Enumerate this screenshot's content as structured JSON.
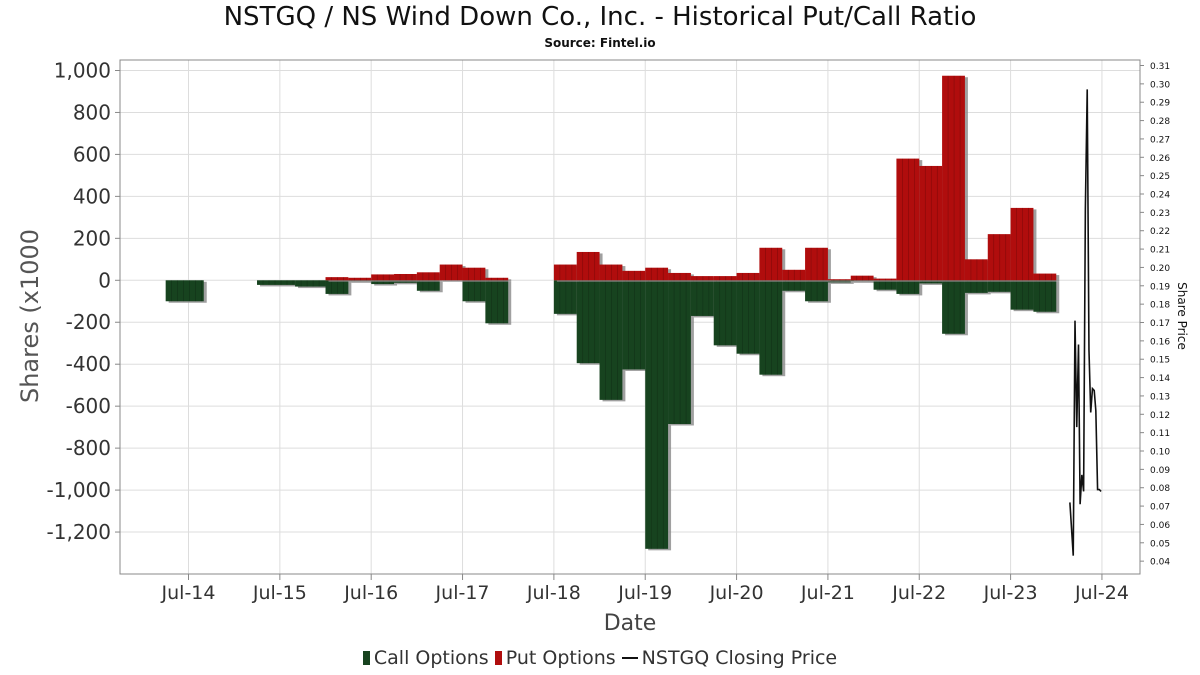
{
  "title": "NSTGQ / NS Wind Down Co., Inc. - Historical Put/Call Ratio",
  "subtitle": "Source: Fintel.io",
  "colors": {
    "call": "#17431f",
    "put": "#b00d0d",
    "price": "#111111",
    "shadow": "#888888",
    "grid": "#dddddd"
  },
  "legend": {
    "call": "Call Options",
    "put": "Put Options",
    "price": "NSTGQ Closing Price"
  },
  "chart_data": {
    "type": "bar",
    "title": "NSTGQ / NS Wind Down Co., Inc. - Historical Put/Call Ratio",
    "xlabel": "Date",
    "ylabel": "Shares (x1000",
    "y2label": "Share Price",
    "ylim": [
      -1400,
      1050
    ],
    "y2lim": [
      0.033,
      0.313
    ],
    "grid": true,
    "legend_position": "bottom",
    "x_tick_labels": [
      "Jul-14",
      "Jul-15",
      "Jul-16",
      "Jul-17",
      "Jul-18",
      "Jul-19",
      "Jul-20",
      "Jul-21",
      "Jul-22",
      "Jul-23",
      "Jul-24"
    ],
    "y_ticks": [
      1000,
      800,
      600,
      400,
      200,
      0,
      -200,
      -400,
      -600,
      -800,
      -1000,
      -1200
    ],
    "y_tick_labels": [
      "1,000",
      "800",
      "600",
      "400",
      "200",
      "0",
      "-200",
      "-400",
      "-600",
      "-800",
      "-1,000",
      "-1,200"
    ],
    "y2_ticks": [
      0.31,
      0.3,
      0.29,
      0.28,
      0.27,
      0.26,
      0.25,
      0.24,
      0.23,
      0.22,
      0.21,
      0.2,
      0.19,
      0.18,
      0.17,
      0.16,
      0.15,
      0.14,
      0.13,
      0.12,
      0.11,
      0.1,
      0.09,
      0.08,
      0.07,
      0.06,
      0.05,
      0.04
    ],
    "y2_tick_labels": [
      "0.31",
      "0.30",
      "0.29",
      "0.28",
      "0.27",
      "0.26",
      "0.25",
      "0.24",
      "0.23",
      "0.22",
      "0.21",
      "0.20",
      "0.19",
      "0.18",
      "0.17",
      "0.16",
      "0.15",
      "0.14",
      "0.13",
      "0.12",
      "0.11",
      "0.10",
      "0.09",
      "0.08",
      "0.07",
      "0.06",
      "0.05",
      "0.04"
    ],
    "x_tick_dates": [
      "2014-07",
      "2015-07",
      "2016-07",
      "2017-07",
      "2018-07",
      "2019-07",
      "2020-07",
      "2021-07",
      "2022-07",
      "2023-07",
      "2024-07"
    ],
    "x_range": [
      "2013-10",
      "2024-12"
    ],
    "series": [
      {
        "name": "Call Options",
        "type": "bar",
        "data": [
          {
            "start": "2014-04",
            "end": "2014-09",
            "value": -100
          },
          {
            "start": "2015-04",
            "end": "2015-09",
            "value": -22
          },
          {
            "start": "2015-09",
            "end": "2016-01",
            "value": -30
          },
          {
            "start": "2016-01",
            "end": "2016-04",
            "value": -65
          },
          {
            "start": "2016-04",
            "end": "2016-07",
            "value": -5
          },
          {
            "start": "2016-07",
            "end": "2016-10",
            "value": -18
          },
          {
            "start": "2016-10",
            "end": "2017-01",
            "value": -12
          },
          {
            "start": "2017-01",
            "end": "2017-04",
            "value": -50
          },
          {
            "start": "2017-04",
            "end": "2017-07",
            "value": -2
          },
          {
            "start": "2017-07",
            "end": "2017-10",
            "value": -100
          },
          {
            "start": "2017-10",
            "end": "2018-01",
            "value": -205
          },
          {
            "start": "2018-07",
            "end": "2018-10",
            "value": -160
          },
          {
            "start": "2018-10",
            "end": "2019-01",
            "value": -395
          },
          {
            "start": "2019-01",
            "end": "2019-04",
            "value": -570
          },
          {
            "start": "2019-04",
            "end": "2019-07",
            "value": -425
          },
          {
            "start": "2019-07",
            "end": "2019-10",
            "value": -1280
          },
          {
            "start": "2019-10",
            "end": "2020-01",
            "value": -685
          },
          {
            "start": "2020-01",
            "end": "2020-04",
            "value": -170
          },
          {
            "start": "2020-04",
            "end": "2020-07",
            "value": -310
          },
          {
            "start": "2020-07",
            "end": "2020-10",
            "value": -350
          },
          {
            "start": "2020-10",
            "end": "2021-01",
            "value": -450
          },
          {
            "start": "2021-01",
            "end": "2021-04",
            "value": -50
          },
          {
            "start": "2021-04",
            "end": "2021-07",
            "value": -100
          },
          {
            "start": "2021-07",
            "end": "2021-10",
            "value": -10
          },
          {
            "start": "2021-10",
            "end": "2022-01",
            "value": -5
          },
          {
            "start": "2022-01",
            "end": "2022-04",
            "value": -45
          },
          {
            "start": "2022-04",
            "end": "2022-07",
            "value": -65
          },
          {
            "start": "2022-07",
            "end": "2022-10",
            "value": -15
          },
          {
            "start": "2022-10",
            "end": "2023-01",
            "value": -255
          },
          {
            "start": "2023-01",
            "end": "2023-04",
            "value": -60
          },
          {
            "start": "2023-04",
            "end": "2023-07",
            "value": -55
          },
          {
            "start": "2023-07",
            "end": "2023-10",
            "value": -140
          },
          {
            "start": "2023-10",
            "end": "2024-01",
            "value": -150
          }
        ]
      },
      {
        "name": "Put Options",
        "type": "bar",
        "data": [
          {
            "start": "2016-01",
            "end": "2016-04",
            "value": 15
          },
          {
            "start": "2016-04",
            "end": "2016-07",
            "value": 12
          },
          {
            "start": "2016-07",
            "end": "2016-10",
            "value": 28
          },
          {
            "start": "2016-10",
            "end": "2017-01",
            "value": 30
          },
          {
            "start": "2017-01",
            "end": "2017-04",
            "value": 38
          },
          {
            "start": "2017-04",
            "end": "2017-07",
            "value": 75
          },
          {
            "start": "2017-07",
            "end": "2017-10",
            "value": 60
          },
          {
            "start": "2017-10",
            "end": "2018-01",
            "value": 12
          },
          {
            "start": "2018-07",
            "end": "2018-10",
            "value": 75
          },
          {
            "start": "2018-10",
            "end": "2019-01",
            "value": 135
          },
          {
            "start": "2019-01",
            "end": "2019-04",
            "value": 75
          },
          {
            "start": "2019-04",
            "end": "2019-07",
            "value": 45
          },
          {
            "start": "2019-07",
            "end": "2019-10",
            "value": 60
          },
          {
            "start": "2019-10",
            "end": "2020-01",
            "value": 35
          },
          {
            "start": "2020-01",
            "end": "2020-04",
            "value": 20
          },
          {
            "start": "2020-04",
            "end": "2020-07",
            "value": 20
          },
          {
            "start": "2020-07",
            "end": "2020-10",
            "value": 35
          },
          {
            "start": "2020-10",
            "end": "2021-01",
            "value": 155
          },
          {
            "start": "2021-01",
            "end": "2021-04",
            "value": 50
          },
          {
            "start": "2021-04",
            "end": "2021-07",
            "value": 155
          },
          {
            "start": "2021-07",
            "end": "2021-10",
            "value": 5
          },
          {
            "start": "2021-10",
            "end": "2022-01",
            "value": 22
          },
          {
            "start": "2022-01",
            "end": "2022-04",
            "value": 8
          },
          {
            "start": "2022-04",
            "end": "2022-07",
            "value": 580
          },
          {
            "start": "2022-07",
            "end": "2022-10",
            "value": 545
          },
          {
            "start": "2022-10",
            "end": "2023-01",
            "value": 975
          },
          {
            "start": "2023-01",
            "end": "2023-04",
            "value": 100
          },
          {
            "start": "2023-04",
            "end": "2023-07",
            "value": 220
          },
          {
            "start": "2023-07",
            "end": "2023-10",
            "value": 345
          },
          {
            "start": "2023-10",
            "end": "2024-01",
            "value": 32
          }
        ]
      },
      {
        "name": "NSTGQ Closing Price",
        "type": "line",
        "axis": "right",
        "x": [
          "2024-02-25",
          "2024-03-08",
          "2024-03-15",
          "2024-03-22",
          "2024-03-29",
          "2024-04-05",
          "2024-04-12",
          "2024-04-19",
          "2024-04-26",
          "2024-05-03",
          "2024-05-10",
          "2024-05-17",
          "2024-05-24",
          "2024-05-31",
          "2024-06-07",
          "2024-06-14",
          "2024-06-21",
          "2024-06-28"
        ],
        "y": [
          0.072,
          0.043,
          0.171,
          0.113,
          0.158,
          0.071,
          0.087,
          0.078,
          0.232,
          0.297,
          0.155,
          0.121,
          0.134,
          0.133,
          0.122,
          0.079,
          0.079,
          0.078
        ]
      }
    ]
  }
}
